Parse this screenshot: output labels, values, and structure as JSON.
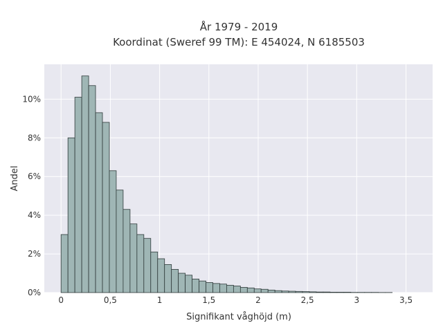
{
  "chart_data": {
    "type": "bar",
    "title_lines": [
      "År 1979 - 2019",
      "Koordinat (Sweref 99 TM): E 454024, N 6185503"
    ],
    "xlabel": "Signifikant våghöjd (m)",
    "ylabel": "Andel",
    "xlim": [
      -0.17,
      3.77
    ],
    "ylim": [
      0,
      11.8
    ],
    "x_ticks": [
      0,
      0.5,
      1,
      1.5,
      2,
      2.5,
      3,
      3.5
    ],
    "x_tick_labels": [
      "0",
      "0,5",
      "1",
      "1,5",
      "2",
      "2,5",
      "3",
      "3,5"
    ],
    "y_ticks": [
      0,
      2,
      4,
      6,
      8,
      10
    ],
    "y_tick_labels": [
      "0%",
      "2%",
      "4%",
      "6%",
      "8%",
      "10%"
    ],
    "bin_width": 0.07,
    "bin_start": 0,
    "values": [
      3.0,
      8.0,
      10.1,
      11.2,
      10.7,
      9.3,
      8.8,
      6.3,
      5.3,
      4.3,
      3.55,
      3.0,
      2.8,
      2.1,
      1.75,
      1.45,
      1.2,
      1.0,
      0.9,
      0.7,
      0.6,
      0.52,
      0.47,
      0.44,
      0.38,
      0.34,
      0.27,
      0.24,
      0.19,
      0.17,
      0.13,
      0.1,
      0.08,
      0.07,
      0.06,
      0.05,
      0.04,
      0.03,
      0.03,
      0.02,
      0.02,
      0.02,
      0.01,
      0.01,
      0.01,
      0.01,
      0.005,
      0.005
    ],
    "colors": {
      "plot_bg": "#e8e8f0",
      "bar_fill": "#9fb6b5",
      "bar_edge": "#2f3a3a",
      "grid": "#ffffff",
      "text": "#333333"
    },
    "grid": true
  }
}
